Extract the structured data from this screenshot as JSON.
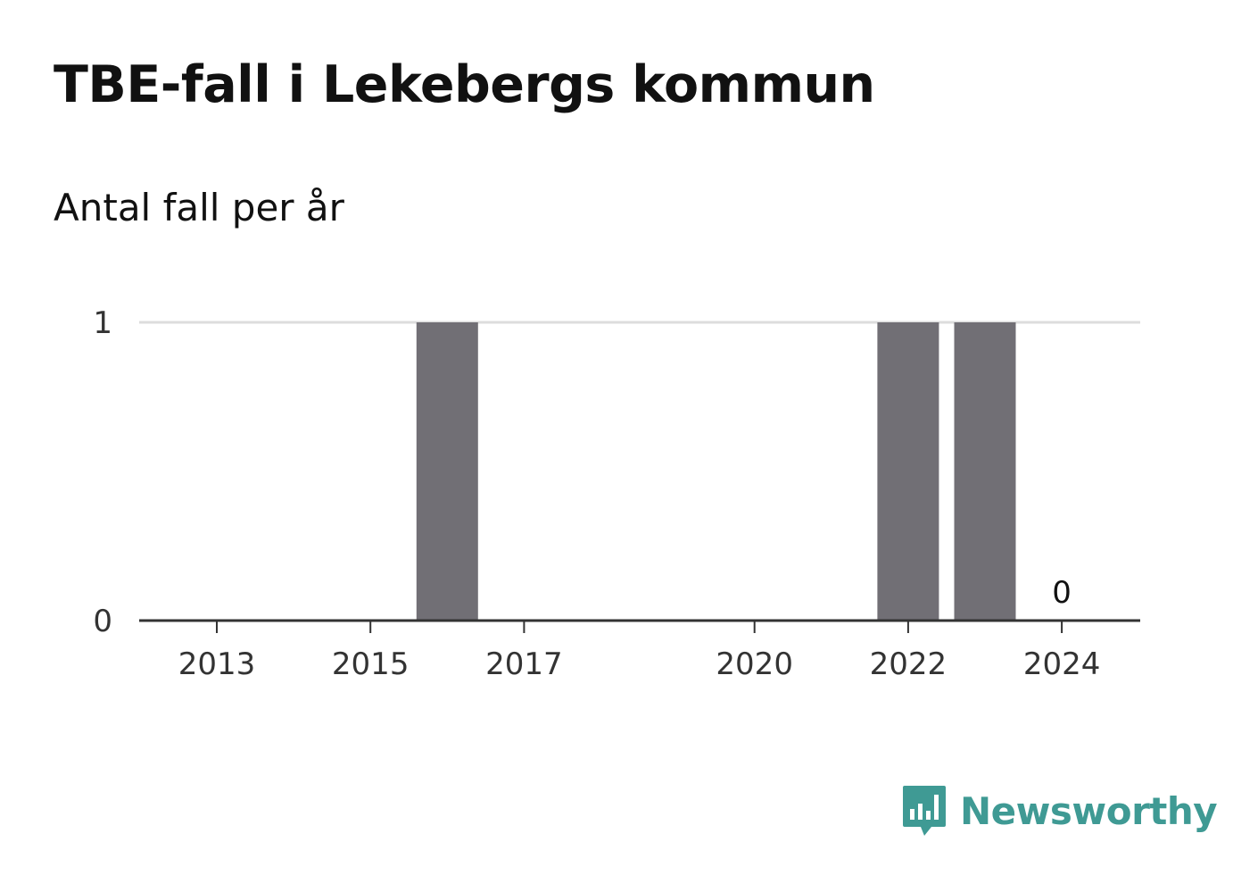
{
  "title": "TBE-fall i Lekebergs kommun",
  "subtitle": "Antal fall per år",
  "brand": {
    "name": "Newsworthy",
    "color": "#3f9a94",
    "icon": "bar-chart-speech-bubble-icon"
  },
  "colors": {
    "bar": "#716f75",
    "gridline": "#dddddd",
    "axis": "#333333",
    "tick_text": "#333333"
  },
  "chart_data": {
    "type": "bar",
    "categories": [
      "2013",
      "2014",
      "2015",
      "2016",
      "2017",
      "2018",
      "2019",
      "2020",
      "2021",
      "2022",
      "2023",
      "2024"
    ],
    "values": [
      0,
      0,
      0,
      1,
      0,
      0,
      0,
      0,
      0,
      1,
      1,
      0
    ],
    "x_tick_labels": [
      "2013",
      "2015",
      "2017",
      "2020",
      "2022",
      "2024"
    ],
    "y_ticks": [
      0,
      1
    ],
    "ylim": [
      0,
      1
    ],
    "data_labels": [
      {
        "category": "2024",
        "label": "0"
      }
    ],
    "xlabel": "",
    "ylabel": "",
    "grid": true
  }
}
